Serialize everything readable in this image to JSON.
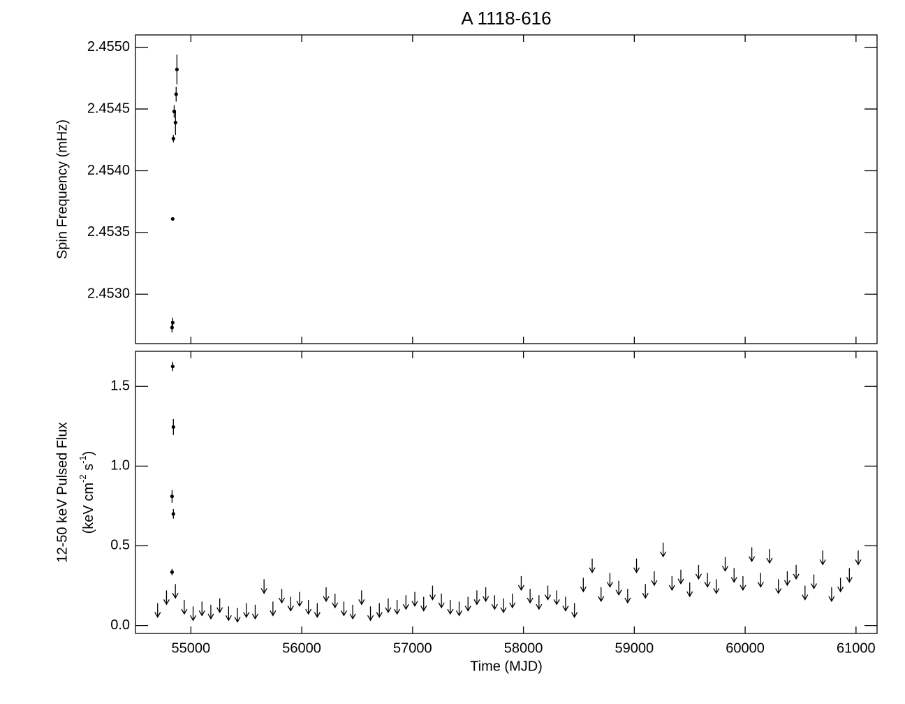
{
  "chart_data": [
    {
      "type": "scatter",
      "title": "A 1118-616",
      "ylabel": "Spin Frequency (mHz)",
      "xlim": [
        54500,
        61190
      ],
      "xticks": [
        55000,
        56000,
        57000,
        58000,
        59000,
        60000,
        61000
      ],
      "ylim": [
        2.4526,
        2.4551
      ],
      "yticks": [
        {
          "value": 2.453,
          "label": "2.4530"
        },
        {
          "value": 2.4535,
          "label": "2.4535"
        },
        {
          "value": 2.454,
          "label": "2.4540"
        },
        {
          "value": 2.4545,
          "label": "2.4545"
        },
        {
          "value": 2.455,
          "label": "2.4550"
        }
      ],
      "x": [
        54830,
        54836,
        54836,
        54842,
        54849,
        54861,
        54867,
        54874
      ],
      "values": [
        2.45273,
        2.45277,
        2.45361,
        2.45426,
        2.45448,
        2.45439,
        2.45462,
        2.45482
      ],
      "errors": [
        4e-05,
        4e-05,
        1e-05,
        3e-05,
        5e-05,
        0.0001,
        6e-05,
        0.00012
      ],
      "color": "#000000"
    },
    {
      "type": "scatter",
      "xlabel": "Time (MJD)",
      "ylabel": [
        "12-50 keV Pulsed Flux",
        "(keV cm",
        "-2",
        " s",
        "-1",
        ")"
      ],
      "xlim": [
        54500,
        61190
      ],
      "xticks": [
        55000,
        56000,
        57000,
        58000,
        59000,
        60000,
        61000
      ],
      "ylim": [
        -0.05,
        1.72
      ],
      "yticks": [
        {
          "value": 0,
          "label": "0.0"
        },
        {
          "value": 0.5,
          "label": "0.5"
        },
        {
          "value": 1,
          "label": "1.0"
        },
        {
          "value": 1.5,
          "label": "1.5"
        }
      ],
      "x": [
        54830,
        54830,
        54842,
        54836,
        54842
      ],
      "values": [
        0.335,
        0.81,
        1.245,
        1.625,
        0.7
      ],
      "errors": [
        0.02,
        0.04,
        0.05,
        0.03,
        0.03
      ],
      "color": "#000000",
      "upper_limits": {
        "x": [
          54700,
          54780,
          54860,
          54940,
          55020,
          55100,
          55180,
          55260,
          55340,
          55420,
          55500,
          55580,
          55660,
          55740,
          55820,
          55900,
          55980,
          56060,
          56140,
          56220,
          56300,
          56380,
          56460,
          56540,
          56620,
          56700,
          56780,
          56860,
          56940,
          57020,
          57100,
          57180,
          57260,
          57340,
          57420,
          57500,
          57580,
          57660,
          57740,
          57820,
          57900,
          57980,
          58060,
          58140,
          58220,
          58300,
          58380,
          58460,
          58540,
          58620,
          58700,
          58780,
          58860,
          58940,
          59020,
          59100,
          59180,
          59260,
          59340,
          59420,
          59500,
          59580,
          59660,
          59740,
          59820,
          59900,
          59980,
          60060,
          60140,
          60220,
          60300,
          60380,
          60460,
          60540,
          60620,
          60700,
          60780,
          60860,
          60940,
          61020
        ],
        "values": [
          0.14,
          0.22,
          0.26,
          0.16,
          0.12,
          0.15,
          0.13,
          0.17,
          0.12,
          0.11,
          0.14,
          0.13,
          0.29,
          0.15,
          0.23,
          0.18,
          0.21,
          0.16,
          0.14,
          0.24,
          0.2,
          0.15,
          0.13,
          0.22,
          0.12,
          0.14,
          0.17,
          0.16,
          0.19,
          0.21,
          0.18,
          0.25,
          0.2,
          0.16,
          0.15,
          0.18,
          0.22,
          0.24,
          0.19,
          0.17,
          0.2,
          0.31,
          0.23,
          0.19,
          0.25,
          0.22,
          0.18,
          0.14,
          0.3,
          0.42,
          0.24,
          0.33,
          0.28,
          0.23,
          0.42,
          0.26,
          0.34,
          0.52,
          0.31,
          0.35,
          0.27,
          0.38,
          0.33,
          0.29,
          0.43,
          0.36,
          0.31,
          0.49,
          0.33,
          0.48,
          0.29,
          0.34,
          0.38,
          0.25,
          0.32,
          0.47,
          0.24,
          0.3,
          0.36,
          0.47
        ]
      }
    }
  ]
}
